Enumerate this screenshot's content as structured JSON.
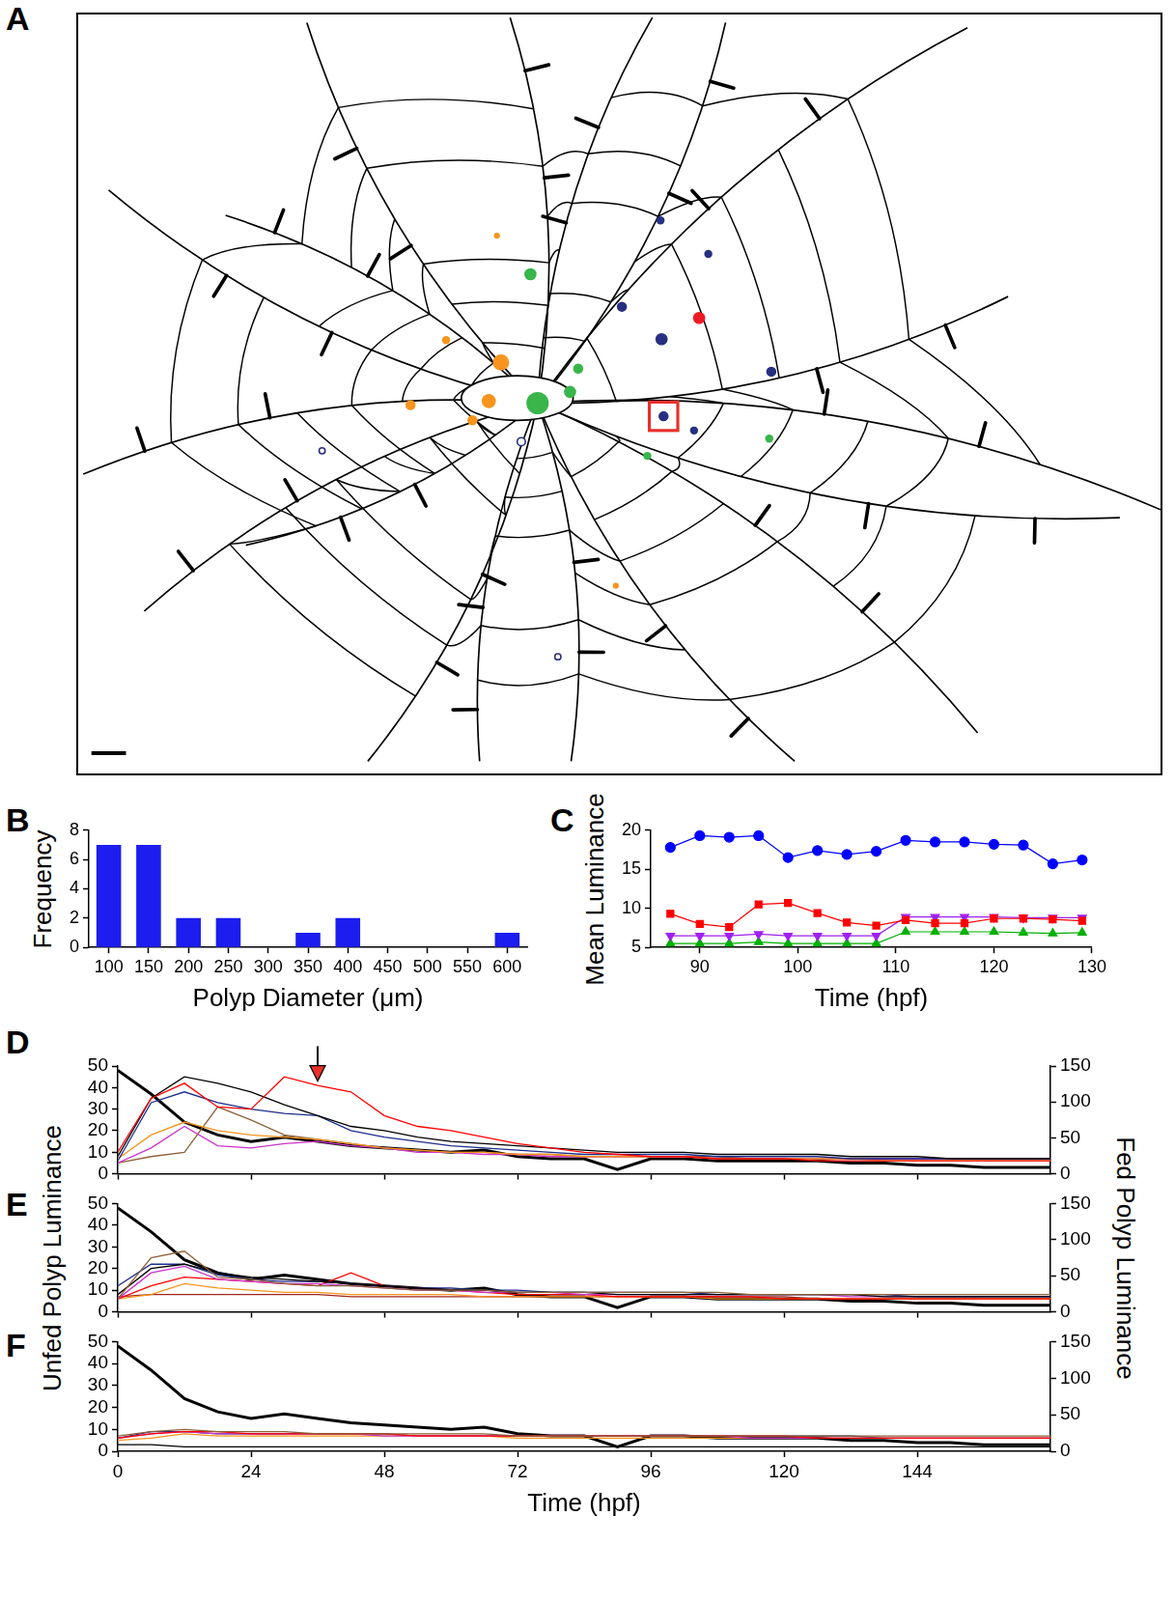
{
  "chart_data": [
    {
      "panel": "A",
      "type": "network"
    },
    {
      "panel": "B",
      "type": "histogram",
      "bins": [
        75,
        125,
        175,
        225,
        275,
        325,
        375,
        425,
        475,
        525,
        575,
        625
      ],
      "values": [
        7,
        7,
        2,
        2,
        0,
        1,
        2,
        0,
        0,
        0,
        1
      ],
      "color": "#1d1df0",
      "x_label": "Polyp Diameter (μm)",
      "y_label": "Frequency",
      "xlim": [
        75,
        625
      ],
      "xticks": [
        100,
        150,
        200,
        250,
        300,
        350,
        400,
        450,
        500,
        550,
        600
      ],
      "ylim": [
        0,
        8
      ],
      "yticks": [
        0,
        2,
        4,
        6,
        8
      ],
      "grid": false
    },
    {
      "panel": "C",
      "type": "line",
      "x": [
        87,
        90,
        93,
        96,
        99,
        102,
        105,
        108,
        111,
        114,
        117,
        120,
        123,
        126,
        129
      ],
      "series": [
        {
          "color": "#0000ff",
          "marker": "circle",
          "values": [
            17.8,
            19.3,
            19.1,
            19.3,
            16.5,
            17.4,
            16.9,
            17.3,
            18.7,
            18.5,
            18.5,
            18.2,
            18.1,
            15.7,
            16.2
          ]
        },
        {
          "color": "#ff0000",
          "marker": "square",
          "values": [
            9.3,
            8.0,
            7.6,
            10.5,
            10.7,
            9.4,
            8.2,
            7.8,
            8.5,
            8.1,
            8.1,
            8.7,
            8.7,
            8.6,
            8.4
          ]
        },
        {
          "color": "#a020f0",
          "marker": "triangle-down",
          "values": [
            6.5,
            6.5,
            6.5,
            6.7,
            6.5,
            6.5,
            6.5,
            6.5,
            8.9,
            8.9,
            8.9,
            8.9,
            8.8,
            8.8,
            8.8
          ]
        },
        {
          "color": "#00b000",
          "marker": "triangle",
          "values": [
            5.5,
            5.5,
            5.5,
            5.7,
            5.5,
            5.5,
            5.5,
            5.5,
            7.0,
            7.0,
            7.0,
            7.0,
            6.9,
            6.8,
            6.9
          ]
        }
      ],
      "x_label": "Time (hpf)",
      "y_label": "Mean Luminance",
      "xlim": [
        85,
        130
      ],
      "xticks": [
        90,
        100,
        110,
        120,
        130
      ],
      "ylim": [
        5,
        20
      ],
      "yticks": [
        5,
        10,
        15,
        20
      ],
      "grid": false
    },
    {
      "panel": "D",
      "type": "line",
      "x": [
        0,
        6,
        12,
        18,
        24,
        30,
        36,
        42,
        48,
        54,
        60,
        66,
        72,
        78,
        84,
        90,
        96,
        102,
        108,
        114,
        120,
        126,
        132,
        138,
        144,
        150,
        156,
        162,
        168
      ],
      "series": [
        {
          "color": "#ff0000",
          "values": [
            10,
            35,
            42,
            31,
            30,
            45,
            41,
            38,
            27,
            22,
            20,
            17,
            14,
            12,
            10,
            9,
            8,
            8,
            7,
            7,
            7,
            6,
            6,
            6,
            6,
            6,
            6,
            6,
            6
          ]
        },
        {
          "color": "#000000",
          "values": [
            8,
            35,
            45,
            42,
            38,
            32,
            27,
            22,
            20,
            17,
            15,
            14,
            13,
            12,
            11,
            10,
            10,
            10,
            9,
            9,
            9,
            9,
            8,
            8,
            8,
            7,
            7,
            7,
            7
          ]
        },
        {
          "color": "#1c2e8c",
          "values": [
            6,
            33,
            38,
            33,
            30,
            28,
            27,
            20,
            17,
            15,
            13,
            12,
            11,
            10,
            9,
            9,
            9,
            9,
            8,
            8,
            8,
            8,
            7,
            7,
            7,
            7,
            7,
            7,
            7
          ]
        },
        {
          "color": "#f7941d",
          "values": [
            7,
            18,
            24,
            20,
            18,
            17,
            16,
            14,
            12,
            11,
            10,
            10,
            9,
            9,
            8,
            8,
            8,
            8,
            7,
            7,
            7,
            7,
            7,
            6,
            6,
            6,
            6,
            6,
            6
          ]
        },
        {
          "color": "#cc33cc",
          "values": [
            5,
            12,
            22,
            13,
            12,
            14,
            15,
            13,
            12,
            10,
            10,
            9,
            9,
            8,
            8,
            8,
            8,
            8,
            7,
            7,
            7,
            7,
            7,
            7,
            7,
            7,
            7,
            7,
            7
          ]
        },
        {
          "color": "#8c6239",
          "values": [
            5,
            8,
            10,
            31,
            25,
            18,
            16,
            14,
            12,
            11,
            10,
            10,
            9,
            9,
            8,
            8,
            8,
            8,
            8,
            7,
            7,
            7,
            7,
            7,
            7,
            7,
            7,
            7,
            7
          ]
        },
        {
          "color": "#000000",
          "axis": "y2",
          "values": [
            144,
            111,
            72,
            54,
            45,
            51,
            45,
            39,
            36,
            33,
            30,
            33,
            24,
            21,
            21,
            6,
            21,
            21,
            18,
            18,
            18,
            18,
            15,
            15,
            12,
            12,
            9,
            9,
            9
          ]
        }
      ],
      "arrow": {
        "x": 36,
        "y": 43
      },
      "xlim": [
        0,
        168
      ],
      "xticks": [
        0,
        24,
        48,
        72,
        96,
        120,
        144
      ],
      "ylim": [
        0,
        50
      ],
      "yticks": [
        0,
        10,
        20,
        30,
        40,
        50
      ],
      "y2lim": [
        0,
        150
      ],
      "y2ticks": [
        0,
        50,
        100,
        150
      ],
      "grid": false,
      "tick_labels": "y"
    },
    {
      "panel": "E",
      "type": "line",
      "x": [
        0,
        6,
        12,
        18,
        24,
        30,
        36,
        42,
        48,
        54,
        60,
        66,
        72,
        78,
        84,
        90,
        96,
        102,
        108,
        114,
        120,
        126,
        132,
        138,
        144,
        150,
        156,
        162,
        168
      ],
      "series": [
        {
          "color": "#8c6239",
          "values": [
            6,
            25,
            28,
            16,
            15,
            13,
            12,
            12,
            11,
            10,
            10,
            10,
            9,
            9,
            9,
            9,
            9,
            9,
            9,
            8,
            8,
            8,
            8,
            8,
            8,
            8,
            8,
            8,
            8
          ]
        },
        {
          "color": "#000000",
          "values": [
            8,
            20,
            22,
            18,
            16,
            15,
            14,
            13,
            12,
            11,
            10,
            10,
            9,
            9,
            9,
            8,
            8,
            8,
            8,
            8,
            8,
            8,
            8,
            7,
            7,
            7,
            7,
            7,
            7
          ]
        },
        {
          "color": "#1c2e8c",
          "values": [
            12,
            22,
            22,
            17,
            15,
            14,
            14,
            13,
            12,
            11,
            11,
            10,
            10,
            9,
            9,
            9,
            9,
            9,
            8,
            8,
            8,
            8,
            8,
            8,
            7,
            7,
            7,
            7,
            7
          ]
        },
        {
          "color": "#cc33cc",
          "values": [
            6,
            18,
            21,
            15,
            14,
            13,
            13,
            12,
            11,
            10,
            10,
            9,
            9,
            9,
            8,
            8,
            8,
            8,
            8,
            8,
            8,
            8,
            7,
            7,
            7,
            7,
            7,
            7,
            7
          ]
        },
        {
          "color": "#ff0000",
          "values": [
            6,
            12,
            16,
            15,
            14,
            13,
            12,
            18,
            12,
            11,
            10,
            9,
            8,
            8,
            8,
            7,
            7,
            7,
            7,
            7,
            6,
            6,
            6,
            6,
            6,
            6,
            6,
            6,
            6
          ]
        },
        {
          "color": "#f7941d",
          "values": [
            6,
            8,
            13,
            11,
            10,
            9,
            9,
            8,
            8,
            8,
            8,
            7,
            7,
            7,
            7,
            7,
            7,
            7,
            6,
            6,
            6,
            6,
            6,
            6,
            6,
            6,
            6,
            6,
            6
          ]
        },
        {
          "color": "#a0261e",
          "values": [
            7,
            8,
            8,
            8,
            8,
            8,
            8,
            7,
            7,
            7,
            7,
            7,
            7,
            7,
            7,
            7,
            7,
            7,
            7,
            7,
            7,
            6,
            6,
            6,
            6,
            6,
            6,
            6,
            6
          ]
        },
        {
          "color": "#000000",
          "axis": "y2",
          "values": [
            144,
            111,
            72,
            54,
            45,
            51,
            45,
            39,
            36,
            33,
            30,
            33,
            24,
            21,
            21,
            6,
            21,
            21,
            18,
            18,
            18,
            18,
            15,
            15,
            12,
            12,
            9,
            9,
            9
          ]
        }
      ],
      "y_label": "Unfed Polyp Luminance",
      "y2_label": "Fed Polyp Luminance",
      "xlim": [
        0,
        168
      ],
      "xticks": [
        0,
        24,
        48,
        72,
        96,
        120,
        144
      ],
      "ylim": [
        0,
        50
      ],
      "yticks": [
        0,
        10,
        20,
        30,
        40,
        50
      ],
      "y2lim": [
        0,
        150
      ],
      "y2ticks": [
        0,
        50,
        100,
        150
      ],
      "grid": false,
      "tick_labels": "y"
    },
    {
      "panel": "F",
      "type": "line",
      "x": [
        0,
        6,
        12,
        18,
        24,
        30,
        36,
        42,
        48,
        54,
        60,
        66,
        72,
        78,
        84,
        90,
        96,
        102,
        108,
        114,
        120,
        126,
        132,
        138,
        144,
        150,
        156,
        162,
        168
      ],
      "series": [
        {
          "color": "#8c6239",
          "values": [
            7,
            9,
            10,
            9,
            9,
            9,
            8,
            8,
            8,
            8,
            8,
            8,
            7,
            7,
            7,
            7,
            7,
            7,
            7,
            7,
            7,
            7,
            7,
            7,
            7,
            7,
            7,
            7,
            7
          ]
        },
        {
          "color": "#ff0000",
          "values": [
            6,
            8,
            9,
            9,
            8,
            8,
            8,
            8,
            8,
            7,
            7,
            7,
            7,
            7,
            7,
            7,
            7,
            7,
            7,
            7,
            7,
            6,
            6,
            6,
            6,
            6,
            6,
            6,
            6
          ]
        },
        {
          "color": "#cc33cc",
          "values": [
            6,
            8,
            9,
            8,
            8,
            8,
            8,
            8,
            7,
            7,
            7,
            7,
            7,
            7,
            7,
            7,
            7,
            7,
            7,
            6,
            6,
            6,
            6,
            6,
            6,
            6,
            6,
            6,
            6
          ]
        },
        {
          "color": "#f7941d",
          "values": [
            5,
            6,
            8,
            7,
            7,
            7,
            7,
            7,
            7,
            7,
            7,
            7,
            6,
            6,
            6,
            6,
            6,
            6,
            6,
            6,
            6,
            6,
            6,
            6,
            6,
            6,
            6,
            6,
            6
          ]
        },
        {
          "color": "#1c2e8c",
          "values": [
            6,
            9,
            9,
            8,
            8,
            8,
            8,
            8,
            8,
            7,
            7,
            7,
            7,
            7,
            7,
            7,
            7,
            7,
            7,
            7,
            7,
            7,
            7,
            6,
            6,
            6,
            6,
            6,
            6
          ]
        },
        {
          "color": "#000000",
          "values": [
            3,
            3,
            2,
            2,
            2,
            2,
            2,
            2,
            2,
            2,
            2,
            2,
            2,
            2,
            2,
            2,
            2,
            2,
            2,
            2,
            2,
            2,
            2,
            2,
            2,
            2,
            2,
            2,
            2
          ]
        },
        {
          "color": "#000000",
          "axis": "y2",
          "values": [
            144,
            111,
            72,
            54,
            45,
            51,
            45,
            39,
            36,
            33,
            30,
            33,
            24,
            21,
            21,
            6,
            21,
            21,
            18,
            18,
            18,
            18,
            15,
            15,
            12,
            12,
            9,
            9,
            9
          ]
        }
      ],
      "x_label": "Time (hpf)",
      "xlim": [
        0,
        168
      ],
      "xticks": [
        0,
        24,
        48,
        72,
        96,
        120,
        144
      ],
      "ylim": [
        0,
        50
      ],
      "yticks": [
        0,
        10,
        20,
        30,
        40,
        50
      ],
      "y2lim": [
        0,
        150
      ],
      "y2ticks": [
        0,
        50,
        100,
        150
      ],
      "grid": false
    }
  ]
}
